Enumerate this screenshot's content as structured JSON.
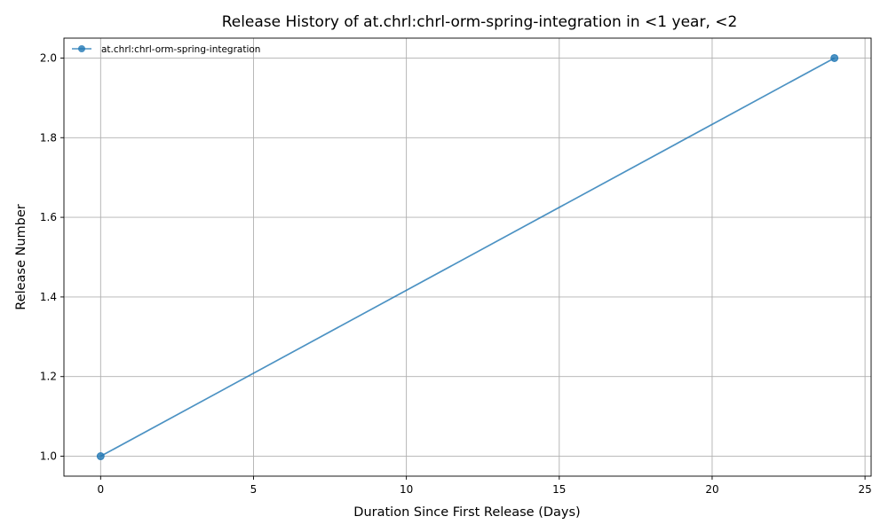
{
  "chart_data": {
    "type": "line",
    "title": "Release History of at.chrl:chrl-orm-spring-integration in <1 year, <2",
    "xlabel": "Duration Since First Release (Days)",
    "ylabel": "Release Number",
    "xlim": [
      -1.2,
      25.2
    ],
    "ylim": [
      0.95,
      2.05
    ],
    "xticks": [
      0,
      5,
      10,
      15,
      20,
      25
    ],
    "yticks": [
      1.0,
      1.2,
      1.4,
      1.6,
      1.8,
      2.0
    ],
    "xtick_labels": [
      "0",
      "5",
      "10",
      "15",
      "20",
      "25"
    ],
    "ytick_labels": [
      "1.0",
      "1.2",
      "1.4",
      "1.6",
      "1.8",
      "2.0"
    ],
    "grid": true,
    "legend_position": "top-left",
    "series": [
      {
        "name": "at.chrl:chrl-orm-spring-integration",
        "color": "#1f77b4",
        "marker": "circle",
        "x": [
          0,
          24
        ],
        "y": [
          1,
          2
        ]
      }
    ]
  }
}
